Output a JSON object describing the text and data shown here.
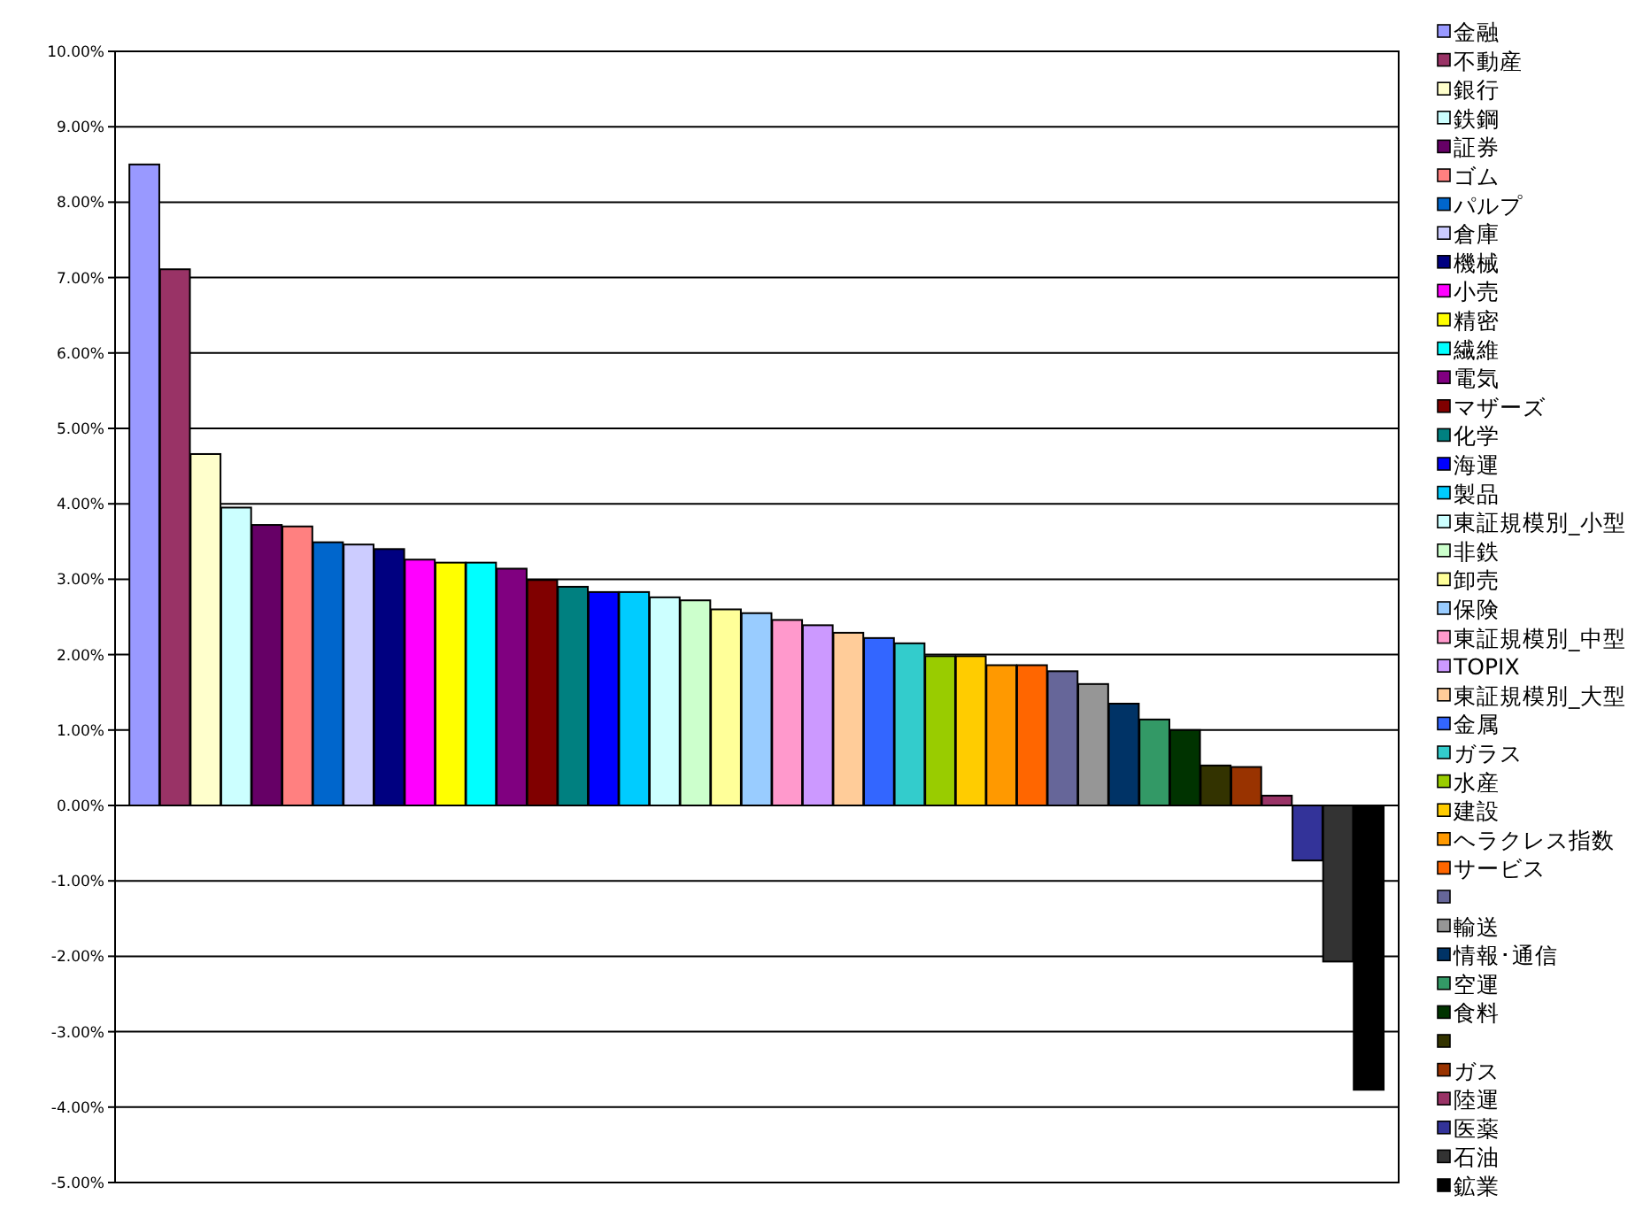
{
  "chart_data": {
    "type": "bar",
    "categories": [
      null
    ],
    "series": [
      {
        "name": "金融",
        "color": "#9999ff",
        "values": [
          8.5
        ]
      },
      {
        "name": "不動産",
        "color": "#993366",
        "values": [
          7.11
        ]
      },
      {
        "name": "銀行",
        "color": "#ffffcc",
        "values": [
          4.66
        ]
      },
      {
        "name": "鉄鋼",
        "color": "#ccffff",
        "values": [
          3.95
        ]
      },
      {
        "name": "証券",
        "color": "#660066",
        "values": [
          3.72
        ]
      },
      {
        "name": "ゴム",
        "color": "#ff8080",
        "values": [
          3.7
        ]
      },
      {
        "name": "パルプ",
        "color": "#0066cc",
        "values": [
          3.49
        ]
      },
      {
        "name": "倉庫",
        "color": "#ccccff",
        "values": [
          3.46
        ]
      },
      {
        "name": "機械",
        "color": "#000080",
        "values": [
          3.4
        ]
      },
      {
        "name": "小売",
        "color": "#ff00ff",
        "values": [
          3.26
        ]
      },
      {
        "name": "精密",
        "color": "#ffff00",
        "values": [
          3.22
        ]
      },
      {
        "name": "繊維",
        "color": "#00ffff",
        "values": [
          3.22
        ]
      },
      {
        "name": "電気",
        "color": "#800080",
        "values": [
          3.14
        ]
      },
      {
        "name": "マザーズ",
        "color": "#800000",
        "values": [
          2.99
        ]
      },
      {
        "name": "化学",
        "color": "#008080",
        "values": [
          2.9
        ]
      },
      {
        "name": "海運",
        "color": "#0000ff",
        "values": [
          2.83
        ]
      },
      {
        "name": "製品",
        "color": "#00ccff",
        "values": [
          2.83
        ]
      },
      {
        "name": "東証規模別_小型",
        "color": "#ccffff",
        "values": [
          2.76
        ]
      },
      {
        "name": "非鉄",
        "color": "#ccffcc",
        "values": [
          2.72
        ]
      },
      {
        "name": "卸売",
        "color": "#ffff99",
        "values": [
          2.6
        ]
      },
      {
        "name": "保険",
        "color": "#99ccff",
        "values": [
          2.55
        ]
      },
      {
        "name": "東証規模別_中型",
        "color": "#ff99cc",
        "values": [
          2.46
        ]
      },
      {
        "name": "TOPIX",
        "color": "#cc99ff",
        "values": [
          2.39
        ]
      },
      {
        "name": "東証規模別_大型",
        "color": "#ffcc99",
        "values": [
          2.29
        ]
      },
      {
        "name": "金属",
        "color": "#3366ff",
        "values": [
          2.22
        ]
      },
      {
        "name": "ガラス",
        "color": "#33cccc",
        "values": [
          2.15
        ]
      },
      {
        "name": "水産",
        "color": "#99cc00",
        "values": [
          1.98
        ]
      },
      {
        "name": "建設",
        "color": "#ffcc00",
        "values": [
          1.98
        ]
      },
      {
        "name": "ヘラクレス指数",
        "color": "#ff9900",
        "values": [
          1.86
        ]
      },
      {
        "name": "サービス",
        "color": "#ff6600",
        "values": [
          1.86
        ]
      },
      {
        "color": "#666699",
        "values": [
          1.78
        ]
      },
      {
        "name": "輸送",
        "color": "#969696",
        "values": [
          1.61
        ]
      },
      {
        "name": "情報･通信",
        "color": "#003366",
        "values": [
          1.35
        ]
      },
      {
        "name": "空運",
        "color": "#339966",
        "values": [
          1.14
        ]
      },
      {
        "name": "食料",
        "color": "#003300",
        "values": [
          1.0
        ]
      },
      {
        "color": "#333300",
        "values": [
          0.53
        ]
      },
      {
        "name": "ガス",
        "color": "#993300",
        "values": [
          0.51
        ]
      },
      {
        "name": "陸運",
        "color": "#993366",
        "values": [
          0.13
        ]
      },
      {
        "name": "医薬",
        "color": "#333399",
        "values": [
          -0.73
        ]
      },
      {
        "name": "石油",
        "color": "#333333",
        "values": [
          -2.07
        ]
      },
      {
        "name": "鉱業",
        "color": "#000000",
        "values": [
          -3.77
        ]
      }
    ],
    "ylim": [
      -5,
      10
    ],
    "yticks": [
      {
        "value": 10,
        "label": "10.00%"
      },
      {
        "value": 9,
        "label": "9.00%"
      },
      {
        "value": 8,
        "label": "8.00%"
      },
      {
        "value": 7,
        "label": "7.00%"
      },
      {
        "value": 6,
        "label": "6.00%"
      },
      {
        "value": 5,
        "label": "5.00%"
      },
      {
        "value": 4,
        "label": "4.00%"
      },
      {
        "value": 3,
        "label": "3.00%"
      },
      {
        "value": 2,
        "label": "2.00%"
      },
      {
        "value": 1,
        "label": "1.00%"
      },
      {
        "value": 0,
        "label": "0.00%"
      },
      {
        "value": -1,
        "label": "-1.00%"
      },
      {
        "value": -2,
        "label": "-2.00%"
      },
      {
        "value": -3,
        "label": "-3.00%"
      },
      {
        "value": -4,
        "label": "-4.00%"
      },
      {
        "value": -5,
        "label": "-5.00%"
      }
    ],
    "grid": "y",
    "legend": "right",
    "tick_labels": "y"
  }
}
